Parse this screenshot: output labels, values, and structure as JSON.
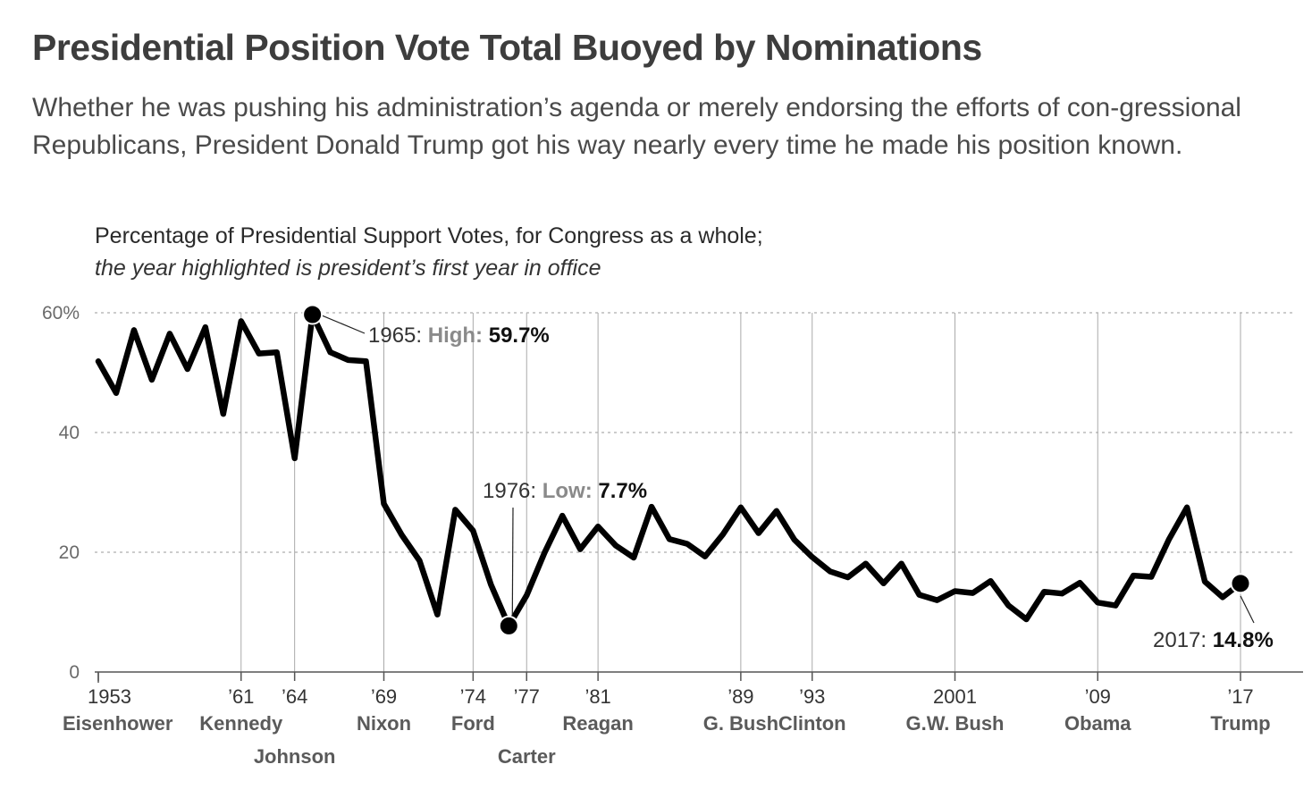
{
  "header": {
    "title": "Presidential Position Vote Total Buoyed by Nominations",
    "subtitle": "Whether he was pushing his administration’s agenda or merely endorsing the efforts of con-gressional Republicans, President Donald Trump got his way nearly every time he made his position known."
  },
  "chart_data": {
    "type": "line",
    "title": "Percentage of Presidential Support Votes, for Congress as a whole;",
    "subtitle": "the year highlighted is president’s first year in office",
    "xlabel": "",
    "ylabel": "",
    "ylim": [
      0,
      60
    ],
    "xlim": [
      1953,
      2017
    ],
    "grid": true,
    "y_ticks": [
      {
        "value": 0,
        "label": "0"
      },
      {
        "value": 20,
        "label": "20"
      },
      {
        "value": 40,
        "label": "40"
      },
      {
        "value": 60,
        "label": "60%"
      }
    ],
    "x_ticks": [
      {
        "year": 1953,
        "label": "1953",
        "president": "Eisenhower",
        "low": false
      },
      {
        "year": 1961,
        "label": "’61",
        "president": "Kennedy",
        "low": false
      },
      {
        "year": 1964,
        "label": "’64",
        "president": "Johnson",
        "low": true
      },
      {
        "year": 1969,
        "label": "’69",
        "president": "Nixon",
        "low": false
      },
      {
        "year": 1974,
        "label": "’74",
        "president": "Ford",
        "low": false
      },
      {
        "year": 1977,
        "label": "’77",
        "president": "Carter",
        "low": true
      },
      {
        "year": 1981,
        "label": "’81",
        "president": "Reagan",
        "low": false
      },
      {
        "year": 1989,
        "label": "’89",
        "president": "G. Bush",
        "low": false
      },
      {
        "year": 1993,
        "label": "’93",
        "president": "Clinton",
        "low": false
      },
      {
        "year": 2001,
        "label": "2001",
        "president": "G.W. Bush",
        "low": false
      },
      {
        "year": 2009,
        "label": "’09",
        "president": "Obama",
        "low": false
      },
      {
        "year": 2017,
        "label": "’17",
        "president": "Trump",
        "low": false
      }
    ],
    "series": [
      {
        "x": [
          1953,
          1954,
          1955,
          1956,
          1957,
          1958,
          1959,
          1960,
          1961,
          1962,
          1963,
          1964,
          1965,
          1966,
          1967,
          1968,
          1969,
          1970,
          1971,
          1972,
          1973,
          1974,
          1975,
          1976,
          1977,
          1978,
          1979,
          1980,
          1981,
          1982,
          1983,
          1984,
          1985,
          1986,
          1987,
          1988,
          1989,
          1990,
          1991,
          1992,
          1993,
          1994,
          1995,
          1996,
          1997,
          1998,
          1999,
          2000,
          2001,
          2002,
          2003,
          2004,
          2005,
          2006,
          2007,
          2008,
          2009,
          2010,
          2011,
          2012,
          2013,
          2014,
          2015,
          2016,
          2017
        ],
        "values": [
          51.9,
          46.6,
          57.1,
          48.8,
          56.5,
          50.6,
          57.6,
          43.1,
          58.6,
          53.2,
          53.4,
          35.7,
          59.7,
          53.4,
          52.1,
          51.9,
          28.1,
          22.9,
          18.6,
          9.6,
          27.1,
          23.6,
          14.6,
          7.7,
          12.8,
          19.9,
          26.1,
          20.5,
          24.3,
          21.1,
          19.1,
          27.6,
          22.2,
          21.4,
          19.3,
          23.0,
          27.5,
          23.2,
          26.9,
          22.1,
          19.2,
          16.8,
          15.8,
          18.1,
          14.8,
          18.1,
          12.9,
          12.0,
          13.5,
          13.2,
          15.2,
          11.1,
          8.8,
          13.4,
          13.1,
          14.9,
          11.6,
          11.1,
          16.1,
          15.9,
          22.2,
          27.5,
          15.1,
          12.5,
          14.8
        ]
      }
    ],
    "highlighted": [
      1953,
      1961,
      1964,
      1969,
      1974,
      1977,
      1981,
      1989,
      1993,
      2001,
      2009,
      2017
    ],
    "annotations": [
      {
        "year": 1965,
        "value": 59.7,
        "year_text": "1965:",
        "kind_text": "High:",
        "value_text": "59.7%"
      },
      {
        "year": 1976,
        "value": 7.7,
        "year_text": "1976:",
        "kind_text": "Low:",
        "value_text": "7.7%"
      },
      {
        "year": 2017,
        "value": 14.8,
        "year_text": "2017:",
        "kind_text": "",
        "value_text": "14.8%"
      }
    ],
    "colors": {
      "line": "#000000",
      "grid": "#999999",
      "axis": "#555555",
      "muted": "#8a8a8a",
      "text": "#333333"
    }
  }
}
